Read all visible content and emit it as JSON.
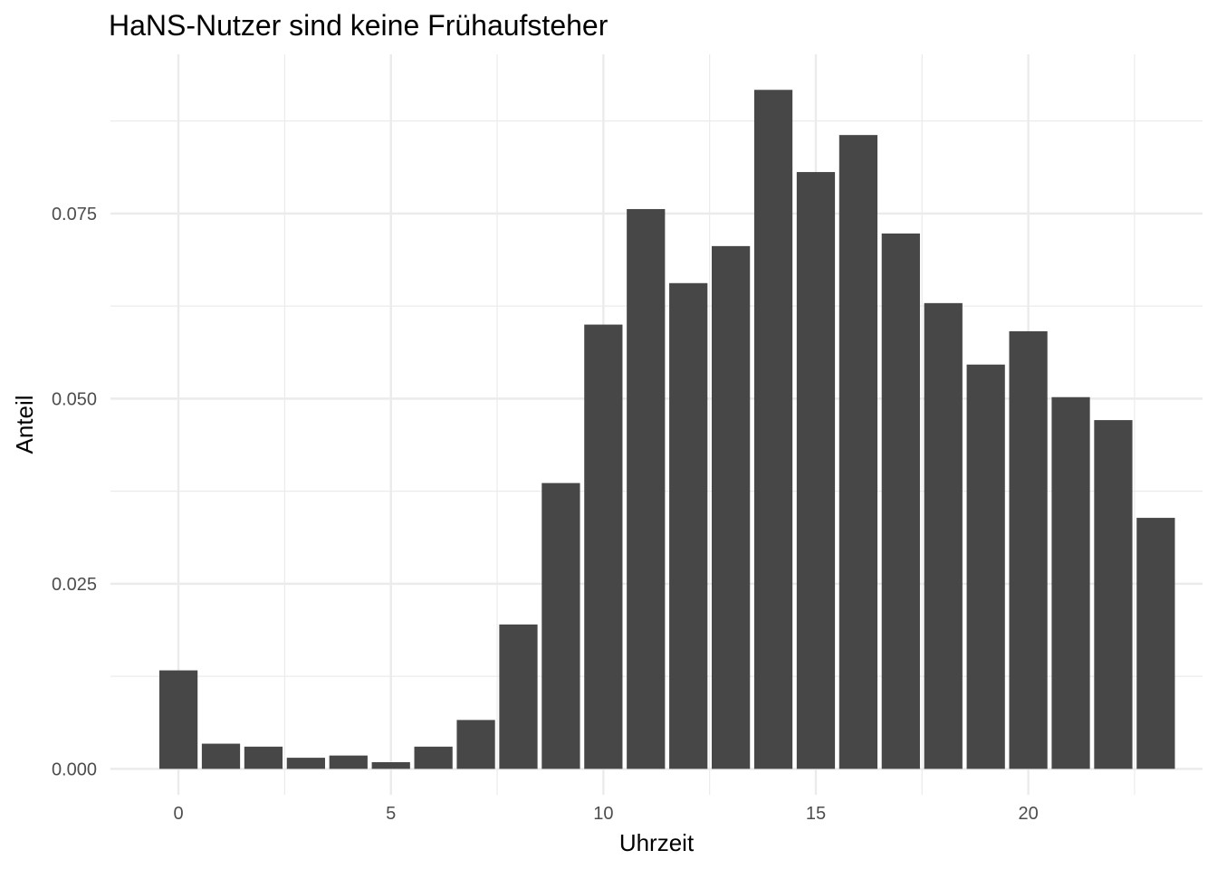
{
  "chart_data": {
    "type": "bar",
    "title": "HaNS-Nutzer sind keine Frühaufsteher",
    "xlabel": "Uhrzeit",
    "ylabel": "Anteil",
    "x": [
      0,
      1,
      2,
      3,
      4,
      5,
      6,
      7,
      8,
      9,
      10,
      11,
      12,
      13,
      14,
      15,
      16,
      17,
      18,
      19,
      20,
      21,
      22,
      23
    ],
    "values": [
      0.0133,
      0.0034,
      0.003,
      0.0015,
      0.0018,
      0.0009,
      0.003,
      0.0066,
      0.0195,
      0.0386,
      0.06,
      0.0756,
      0.0656,
      0.0706,
      0.0917,
      0.0806,
      0.0856,
      0.0723,
      0.0629,
      0.0546,
      0.0591,
      0.0502,
      0.0471,
      0.0339
    ],
    "x_ticks": [
      0,
      5,
      10,
      15,
      20
    ],
    "x_tick_labels": [
      "0",
      "5",
      "10",
      "15",
      "20"
    ],
    "y_ticks": [
      0,
      0.025,
      0.05,
      0.075
    ],
    "y_tick_labels": [
      "0.000",
      "0.025",
      "0.050",
      "0.075"
    ],
    "xlim": [
      -1.6,
      24.1
    ],
    "ylim": [
      -0.0035,
      0.0965
    ],
    "grid": true,
    "legend": "none",
    "bar_color": "#474747",
    "grid_color": "#ebebeb"
  }
}
